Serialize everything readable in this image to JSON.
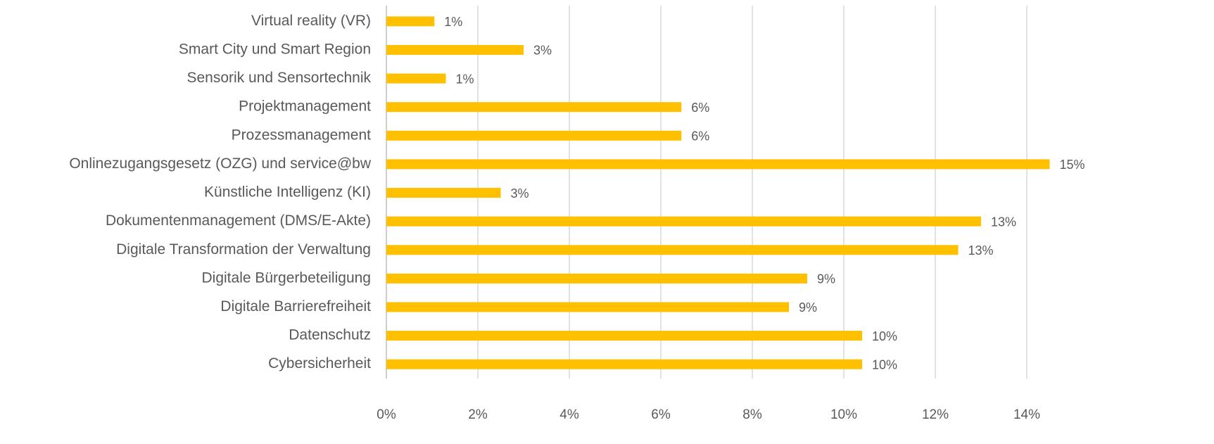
{
  "chart_data": {
    "type": "hbar",
    "categories": [
      "Virtual reality (VR)",
      "Smart City und Smart Region",
      "Sensorik und Sensortechnik",
      "Projektmanagement",
      "Prozessmanagement",
      "Onlinezugangsgesetz (OZG) und service@bw",
      "Künstliche Intelligenz (KI)",
      "Dokumentenmanagement (DMS/E-Akte)",
      "Digitale Transformation der Verwaltung",
      "Digitale Bürgerbeteiligung",
      "Digitale Barrierefreiheit",
      "Datenschutz",
      "Cybersicherheit"
    ],
    "values": [
      1.05,
      3.0,
      1.3,
      6.45,
      6.45,
      14.5,
      2.5,
      13.0,
      12.5,
      9.2,
      8.8,
      10.4,
      10.4
    ],
    "value_labels": [
      "1%",
      "3%",
      "1%",
      "6%",
      "6%",
      "15%",
      "3%",
      "13%",
      "13%",
      "9%",
      "9%",
      "10%",
      "10%"
    ],
    "color": "#ffc000",
    "xlim": [
      0,
      15
    ],
    "xticks": [
      {
        "value": 0,
        "label": "0%"
      },
      {
        "value": 2,
        "label": "2%"
      },
      {
        "value": 4,
        "label": "4%"
      },
      {
        "value": 6,
        "label": "6%"
      },
      {
        "value": 8,
        "label": "8%"
      },
      {
        "value": 10,
        "label": "10%"
      },
      {
        "value": 12,
        "label": "12%"
      },
      {
        "value": 14,
        "label": "14%"
      }
    ],
    "grid": true
  }
}
